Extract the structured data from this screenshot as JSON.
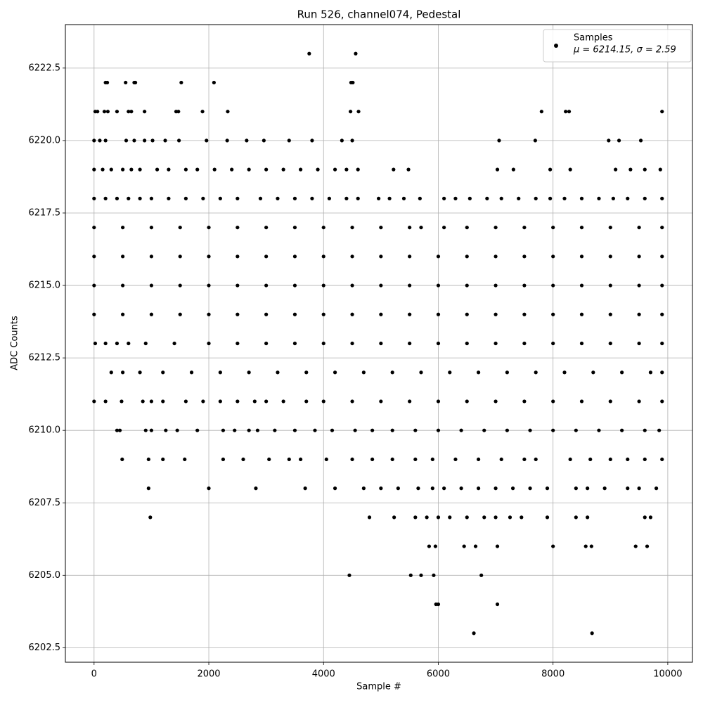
{
  "chart_data": {
    "type": "scatter",
    "title": "Run 526, channel074, Pedestal",
    "xlabel": "Sample #",
    "ylabel": "ADC Counts",
    "xlim": [
      -500,
      10430
    ],
    "ylim": [
      6202,
      6224
    ],
    "xticks": [
      0,
      2000,
      4000,
      6000,
      8000,
      10000
    ],
    "yticks": [
      6202.5,
      {
        "value": 6205,
        "label": "6205.0"
      },
      6207.5,
      {
        "value": 6210,
        "label": "6210.0"
      },
      6212.5,
      {
        "value": 6215,
        "label": "6215.0"
      },
      6217.5,
      {
        "value": 6220,
        "label": "6220.0"
      },
      6222.5
    ],
    "grid": true,
    "legend": "upper right",
    "annotation": "μ = 6214.15, σ = 2.59",
    "series": [
      {
        "name": "Samples",
        "color": "#000000",
        "x": [
          3750,
          4560,
          200,
          230,
          550,
          700,
          720,
          1520,
          2090,
          4480,
          4510,
          20,
          60,
          180,
          240,
          400,
          600,
          650,
          880,
          1430,
          1470,
          1890,
          2330,
          4470,
          4610,
          7800,
          8220,
          8280,
          9900,
          0,
          100,
          200,
          560,
          700,
          880,
          1020,
          1240,
          1480,
          1960,
          2320,
          2660,
          2960,
          3400,
          3800,
          4320,
          4500,
          7060,
          7690,
          8970,
          9150,
          9530,
          0,
          150,
          300,
          500,
          650,
          800,
          1100,
          1300,
          1600,
          1800,
          2100,
          2400,
          2700,
          3000,
          3300,
          3600,
          3900,
          4200,
          4400,
          4600,
          5220,
          5480,
          7030,
          7310,
          7950,
          8300,
          9090,
          9350,
          9600,
          9870,
          0,
          200,
          400,
          600,
          800,
          1000,
          1300,
          1600,
          1900,
          2200,
          2500,
          2900,
          3200,
          3500,
          3800,
          4100,
          4400,
          4600,
          4960,
          5150,
          5400,
          5680,
          6100,
          6300,
          6550,
          6850,
          7100,
          7400,
          7700,
          7950,
          8200,
          8500,
          8800,
          9050,
          9300,
          9600,
          9900,
          0,
          500,
          1000,
          1500,
          2000,
          2500,
          3000,
          3500,
          4000,
          4500,
          5000,
          5500,
          5700,
          6100,
          6500,
          7000,
          7500,
          8000,
          8500,
          9000,
          9500,
          9900,
          0,
          500,
          1000,
          1500,
          2000,
          2500,
          3000,
          3500,
          4000,
          4500,
          5000,
          5500,
          6000,
          6500,
          7000,
          7500,
          8000,
          8500,
          9000,
          9500,
          9900,
          0,
          500,
          1000,
          1500,
          2000,
          2500,
          3000,
          3500,
          4000,
          4500,
          5000,
          5500,
          6000,
          6500,
          7000,
          7500,
          8000,
          8500,
          9000,
          9500,
          9900,
          0,
          500,
          1000,
          1500,
          2000,
          2500,
          3000,
          3500,
          4000,
          4500,
          5000,
          5500,
          6000,
          6500,
          7000,
          7500,
          8000,
          8500,
          9000,
          9500,
          9900,
          20,
          200,
          400,
          600,
          900,
          1400,
          2000,
          2500,
          3000,
          3500,
          4000,
          4500,
          5000,
          5500,
          6000,
          6500,
          7000,
          7500,
          8000,
          8500,
          9000,
          9500,
          9900,
          300,
          500,
          800,
          1200,
          1700,
          2200,
          2700,
          3200,
          3700,
          4200,
          4700,
          5200,
          5700,
          6200,
          6700,
          7200,
          7700,
          8200,
          8700,
          9200,
          9700,
          9900,
          0,
          200,
          480,
          850,
          1000,
          1200,
          1600,
          1900,
          2200,
          2500,
          2800,
          3000,
          3300,
          3700,
          4000,
          4500,
          5000,
          5500,
          6000,
          6500,
          7000,
          7500,
          8000,
          8500,
          9000,
          9500,
          9900,
          400,
          450,
          900,
          1000,
          1250,
          1450,
          1800,
          2250,
          2450,
          2700,
          2850,
          3150,
          3500,
          3850,
          4150,
          4550,
          4850,
          5200,
          5600,
          6000,
          6400,
          6800,
          7200,
          7600,
          8000,
          8400,
          8800,
          9200,
          9600,
          9850,
          490,
          950,
          1200,
          1580,
          2250,
          2600,
          3050,
          3400,
          3600,
          4050,
          4500,
          4850,
          5200,
          5600,
          5900,
          6300,
          6700,
          7100,
          7500,
          7700,
          8300,
          8650,
          9000,
          9300,
          9600,
          9900,
          950,
          2000,
          2820,
          3680,
          4200,
          4700,
          5000,
          5300,
          5650,
          5900,
          6100,
          6400,
          6700,
          7000,
          7300,
          7600,
          7900,
          8400,
          8600,
          8900,
          9300,
          9500,
          9800,
          980,
          4800,
          5230,
          5600,
          5800,
          6000,
          6200,
          6500,
          6800,
          7000,
          7250,
          7450,
          7900,
          8400,
          8600,
          9600,
          9700,
          5840,
          5950,
          6450,
          6650,
          7030,
          8000,
          8570,
          8670,
          9440,
          9640,
          4450,
          5520,
          5700,
          5920,
          6750,
          5960,
          6000,
          7030,
          6620,
          8680
        ],
        "values": [
          6223,
          6223,
          6222,
          6222,
          6222,
          6222,
          6222,
          6222,
          6222,
          6222,
          6222,
          6221,
          6221,
          6221,
          6221,
          6221,
          6221,
          6221,
          6221,
          6221,
          6221,
          6221,
          6221,
          6221,
          6221,
          6221,
          6221,
          6221,
          6221,
          6220,
          6220,
          6220,
          6220,
          6220,
          6220,
          6220,
          6220,
          6220,
          6220,
          6220,
          6220,
          6220,
          6220,
          6220,
          6220,
          6220,
          6220,
          6220,
          6220,
          6220,
          6220,
          6219,
          6219,
          6219,
          6219,
          6219,
          6219,
          6219,
          6219,
          6219,
          6219,
          6219,
          6219,
          6219,
          6219,
          6219,
          6219,
          6219,
          6219,
          6219,
          6219,
          6219,
          6219,
          6219,
          6219,
          6219,
          6219,
          6219,
          6219,
          6219,
          6219,
          6218,
          6218,
          6218,
          6218,
          6218,
          6218,
          6218,
          6218,
          6218,
          6218,
          6218,
          6218,
          6218,
          6218,
          6218,
          6218,
          6218,
          6218,
          6218,
          6218,
          6218,
          6218,
          6218,
          6218,
          6218,
          6218,
          6218,
          6218,
          6218,
          6218,
          6218,
          6218,
          6218,
          6218,
          6218,
          6218,
          6218,
          6217,
          6217,
          6217,
          6217,
          6217,
          6217,
          6217,
          6217,
          6217,
          6217,
          6217,
          6217,
          6217,
          6217,
          6217,
          6217,
          6217,
          6217,
          6217,
          6217,
          6217,
          6217,
          6216,
          6216,
          6216,
          6216,
          6216,
          6216,
          6216,
          6216,
          6216,
          6216,
          6216,
          6216,
          6216,
          6216,
          6216,
          6216,
          6216,
          6216,
          6216,
          6216,
          6216,
          6215,
          6215,
          6215,
          6215,
          6215,
          6215,
          6215,
          6215,
          6215,
          6215,
          6215,
          6215,
          6215,
          6215,
          6215,
          6215,
          6215,
          6215,
          6215,
          6215,
          6215,
          6214,
          6214,
          6214,
          6214,
          6214,
          6214,
          6214,
          6214,
          6214,
          6214,
          6214,
          6214,
          6214,
          6214,
          6214,
          6214,
          6214,
          6214,
          6214,
          6214,
          6214,
          6213,
          6213,
          6213,
          6213,
          6213,
          6213,
          6213,
          6213,
          6213,
          6213,
          6213,
          6213,
          6213,
          6213,
          6213,
          6213,
          6213,
          6213,
          6213,
          6213,
          6213,
          6213,
          6213,
          6212,
          6212,
          6212,
          6212,
          6212,
          6212,
          6212,
          6212,
          6212,
          6212,
          6212,
          6212,
          6212,
          6212,
          6212,
          6212,
          6212,
          6212,
          6212,
          6212,
          6212,
          6212,
          6211,
          6211,
          6211,
          6211,
          6211,
          6211,
          6211,
          6211,
          6211,
          6211,
          6211,
          6211,
          6211,
          6211,
          6211,
          6211,
          6211,
          6211,
          6211,
          6211,
          6211,
          6211,
          6211,
          6211,
          6211,
          6211,
          6211,
          6210,
          6210,
          6210,
          6210,
          6210,
          6210,
          6210,
          6210,
          6210,
          6210,
          6210,
          6210,
          6210,
          6210,
          6210,
          6210,
          6210,
          6210,
          6210,
          6210,
          6210,
          6210,
          6210,
          6210,
          6210,
          6210,
          6210,
          6210,
          6210,
          6210,
          6209,
          6209,
          6209,
          6209,
          6209,
          6209,
          6209,
          6209,
          6209,
          6209,
          6209,
          6209,
          6209,
          6209,
          6209,
          6209,
          6209,
          6209,
          6209,
          6209,
          6209,
          6209,
          6209,
          6209,
          6209,
          6209,
          6208,
          6208,
          6208,
          6208,
          6208,
          6208,
          6208,
          6208,
          6208,
          6208,
          6208,
          6208,
          6208,
          6208,
          6208,
          6208,
          6208,
          6208,
          6208,
          6208,
          6208,
          6208,
          6208,
          6207,
          6207,
          6207,
          6207,
          6207,
          6207,
          6207,
          6207,
          6207,
          6207,
          6207,
          6207,
          6207,
          6207,
          6207,
          6207,
          6207,
          6206,
          6206,
          6206,
          6206,
          6206,
          6206,
          6206,
          6206,
          6206,
          6206,
          6205,
          6205,
          6205,
          6205,
          6205,
          6204,
          6204,
          6204,
          6203,
          6203
        ]
      }
    ]
  }
}
